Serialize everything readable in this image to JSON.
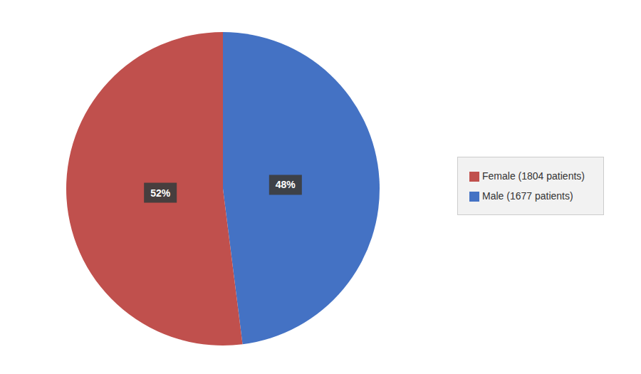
{
  "chart_data": {
    "type": "pie",
    "categories": [
      "Male (1677 patients)",
      "Female (1804 patients)"
    ],
    "values": [
      48,
      52
    ],
    "value_labels": [
      "48%",
      "52%"
    ],
    "colors": [
      "#4472C4",
      "#C0504D"
    ],
    "data_labels": true,
    "legend": "right"
  }
}
